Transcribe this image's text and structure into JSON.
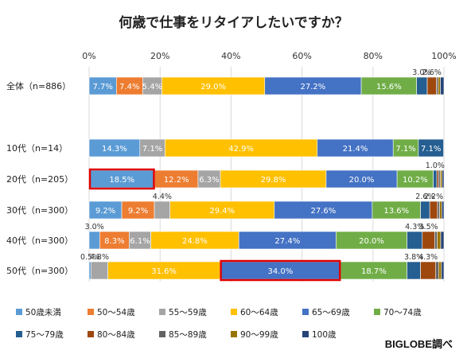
{
  "chart_data": {
    "type": "bar",
    "orientation": "horizontal",
    "stacked": "percent",
    "title": "何歳で仕事をリタイアしたいですか？",
    "source": "BIGLOBE調べ",
    "x_ticks": [
      "0%",
      "20%",
      "40%",
      "60%",
      "80%",
      "100%"
    ],
    "xlim": [
      0,
      100
    ],
    "grid": true,
    "legend_position": "bottom",
    "categories": [
      "全体（n=886）",
      "10代（n=14）",
      "20代（n=205）",
      "30代（n=300）",
      "40代（n=300）",
      "50代（n=300）"
    ],
    "series": [
      {
        "name": "50歳未満",
        "color": "#5b9bd5",
        "values": [
          7.7,
          14.3,
          18.5,
          9.2,
          3.0,
          0.5
        ],
        "labels": [
          "7.7%",
          "14.3%",
          "18.5%",
          "9.2%",
          "3.0%",
          "0.5%"
        ]
      },
      {
        "name": "50～54歳",
        "color": "#ed7d31",
        "values": [
          7.4,
          0,
          12.2,
          9.2,
          8.3,
          0
        ],
        "labels": [
          "7.4%",
          "",
          "12.2%",
          "9.2%",
          "8.3%",
          ""
        ]
      },
      {
        "name": "55～59歳",
        "color": "#a5a5a5",
        "values": [
          5.4,
          7.1,
          6.3,
          4.4,
          6.1,
          4.8
        ],
        "labels": [
          "5.4%",
          "7.1%",
          "6.3%",
          "4.4%",
          "6.1%",
          "4.8%"
        ]
      },
      {
        "name": "60～64歳",
        "color": "#ffc000",
        "values": [
          29.0,
          42.9,
          29.8,
          29.4,
          24.8,
          31.6
        ],
        "labels": [
          "29.0%",
          "42.9%",
          "29.8%",
          "29.4%",
          "24.8%",
          "31.6%"
        ]
      },
      {
        "name": "65～69歳",
        "color": "#4472c4",
        "values": [
          27.2,
          21.4,
          20.0,
          27.6,
          27.4,
          34.0
        ],
        "labels": [
          "27.2%",
          "21.4%",
          "20.0%",
          "27.6%",
          "27.4%",
          "34.0%"
        ]
      },
      {
        "name": "70～74歳",
        "color": "#70ad47",
        "values": [
          15.6,
          7.1,
          10.2,
          13.6,
          20.0,
          18.7
        ],
        "labels": [
          "15.6%",
          "7.1%",
          "10.2%",
          "13.6%",
          "20.0%",
          "18.7%"
        ]
      },
      {
        "name": "75～79歳",
        "color": "#255e91",
        "values": [
          3.0,
          7.1,
          1.0,
          2.6,
          4.3,
          3.8
        ],
        "labels": [
          "3.0%",
          "7.1%",
          "1.0%",
          "2.6%",
          "4.3%",
          "3.8%"
        ]
      },
      {
        "name": "80～84歳",
        "color": "#9e480e",
        "values": [
          2.6,
          0,
          0.5,
          2.2,
          3.5,
          4.3
        ],
        "labels": [
          "2.6%",
          "",
          "",
          "2.2%",
          "3.5%",
          "4.3%"
        ]
      },
      {
        "name": "85～89歳",
        "color": "#636363",
        "values": [
          0.5,
          0,
          0.5,
          0.6,
          0.7,
          0.8
        ],
        "labels": [
          "",
          "",
          "",
          "",
          "",
          ""
        ]
      },
      {
        "name": "90～99歳",
        "color": "#997300",
        "values": [
          0.6,
          0,
          0.5,
          0.6,
          1.0,
          0.8
        ],
        "labels": [
          "",
          "",
          "",
          "",
          "",
          ""
        ]
      },
      {
        "name": "100歳",
        "color": "#264478",
        "values": [
          1.0,
          0,
          0.5,
          0.6,
          0.9,
          0.7
        ],
        "labels": [
          "",
          "",
          "",
          "",
          "",
          ""
        ]
      }
    ],
    "highlights": [
      {
        "category_index": 2,
        "series_index": 0
      },
      {
        "category_index": 5,
        "series_index": 4
      }
    ]
  }
}
